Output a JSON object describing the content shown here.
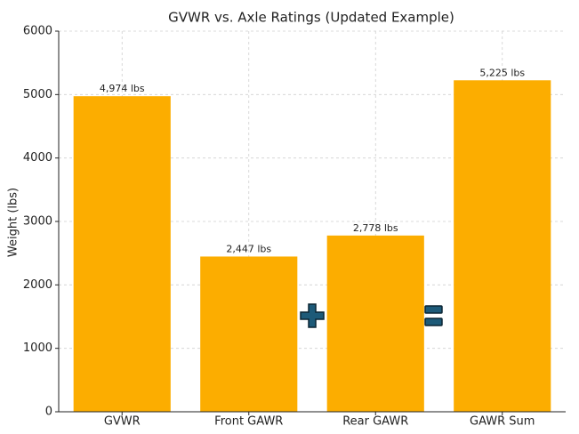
{
  "chart_data": {
    "type": "bar",
    "title": "GVWR vs. Axle Ratings (Updated Example)",
    "y_label": "Weight (lbs)",
    "categories": [
      "GVWR",
      "Front GAWR",
      "Rear GAWR",
      "GAWR Sum"
    ],
    "values": [
      4974,
      2447,
      2778,
      5225
    ],
    "value_labels": [
      "4,974 lbs",
      "2,447 lbs",
      "2,778 lbs",
      "5,225 lbs"
    ],
    "color": "#fcad00",
    "ylim": [
      0,
      6000
    ],
    "yticks": [
      0,
      1000,
      2000,
      3000,
      4000,
      5000,
      6000
    ],
    "grid": true
  }
}
